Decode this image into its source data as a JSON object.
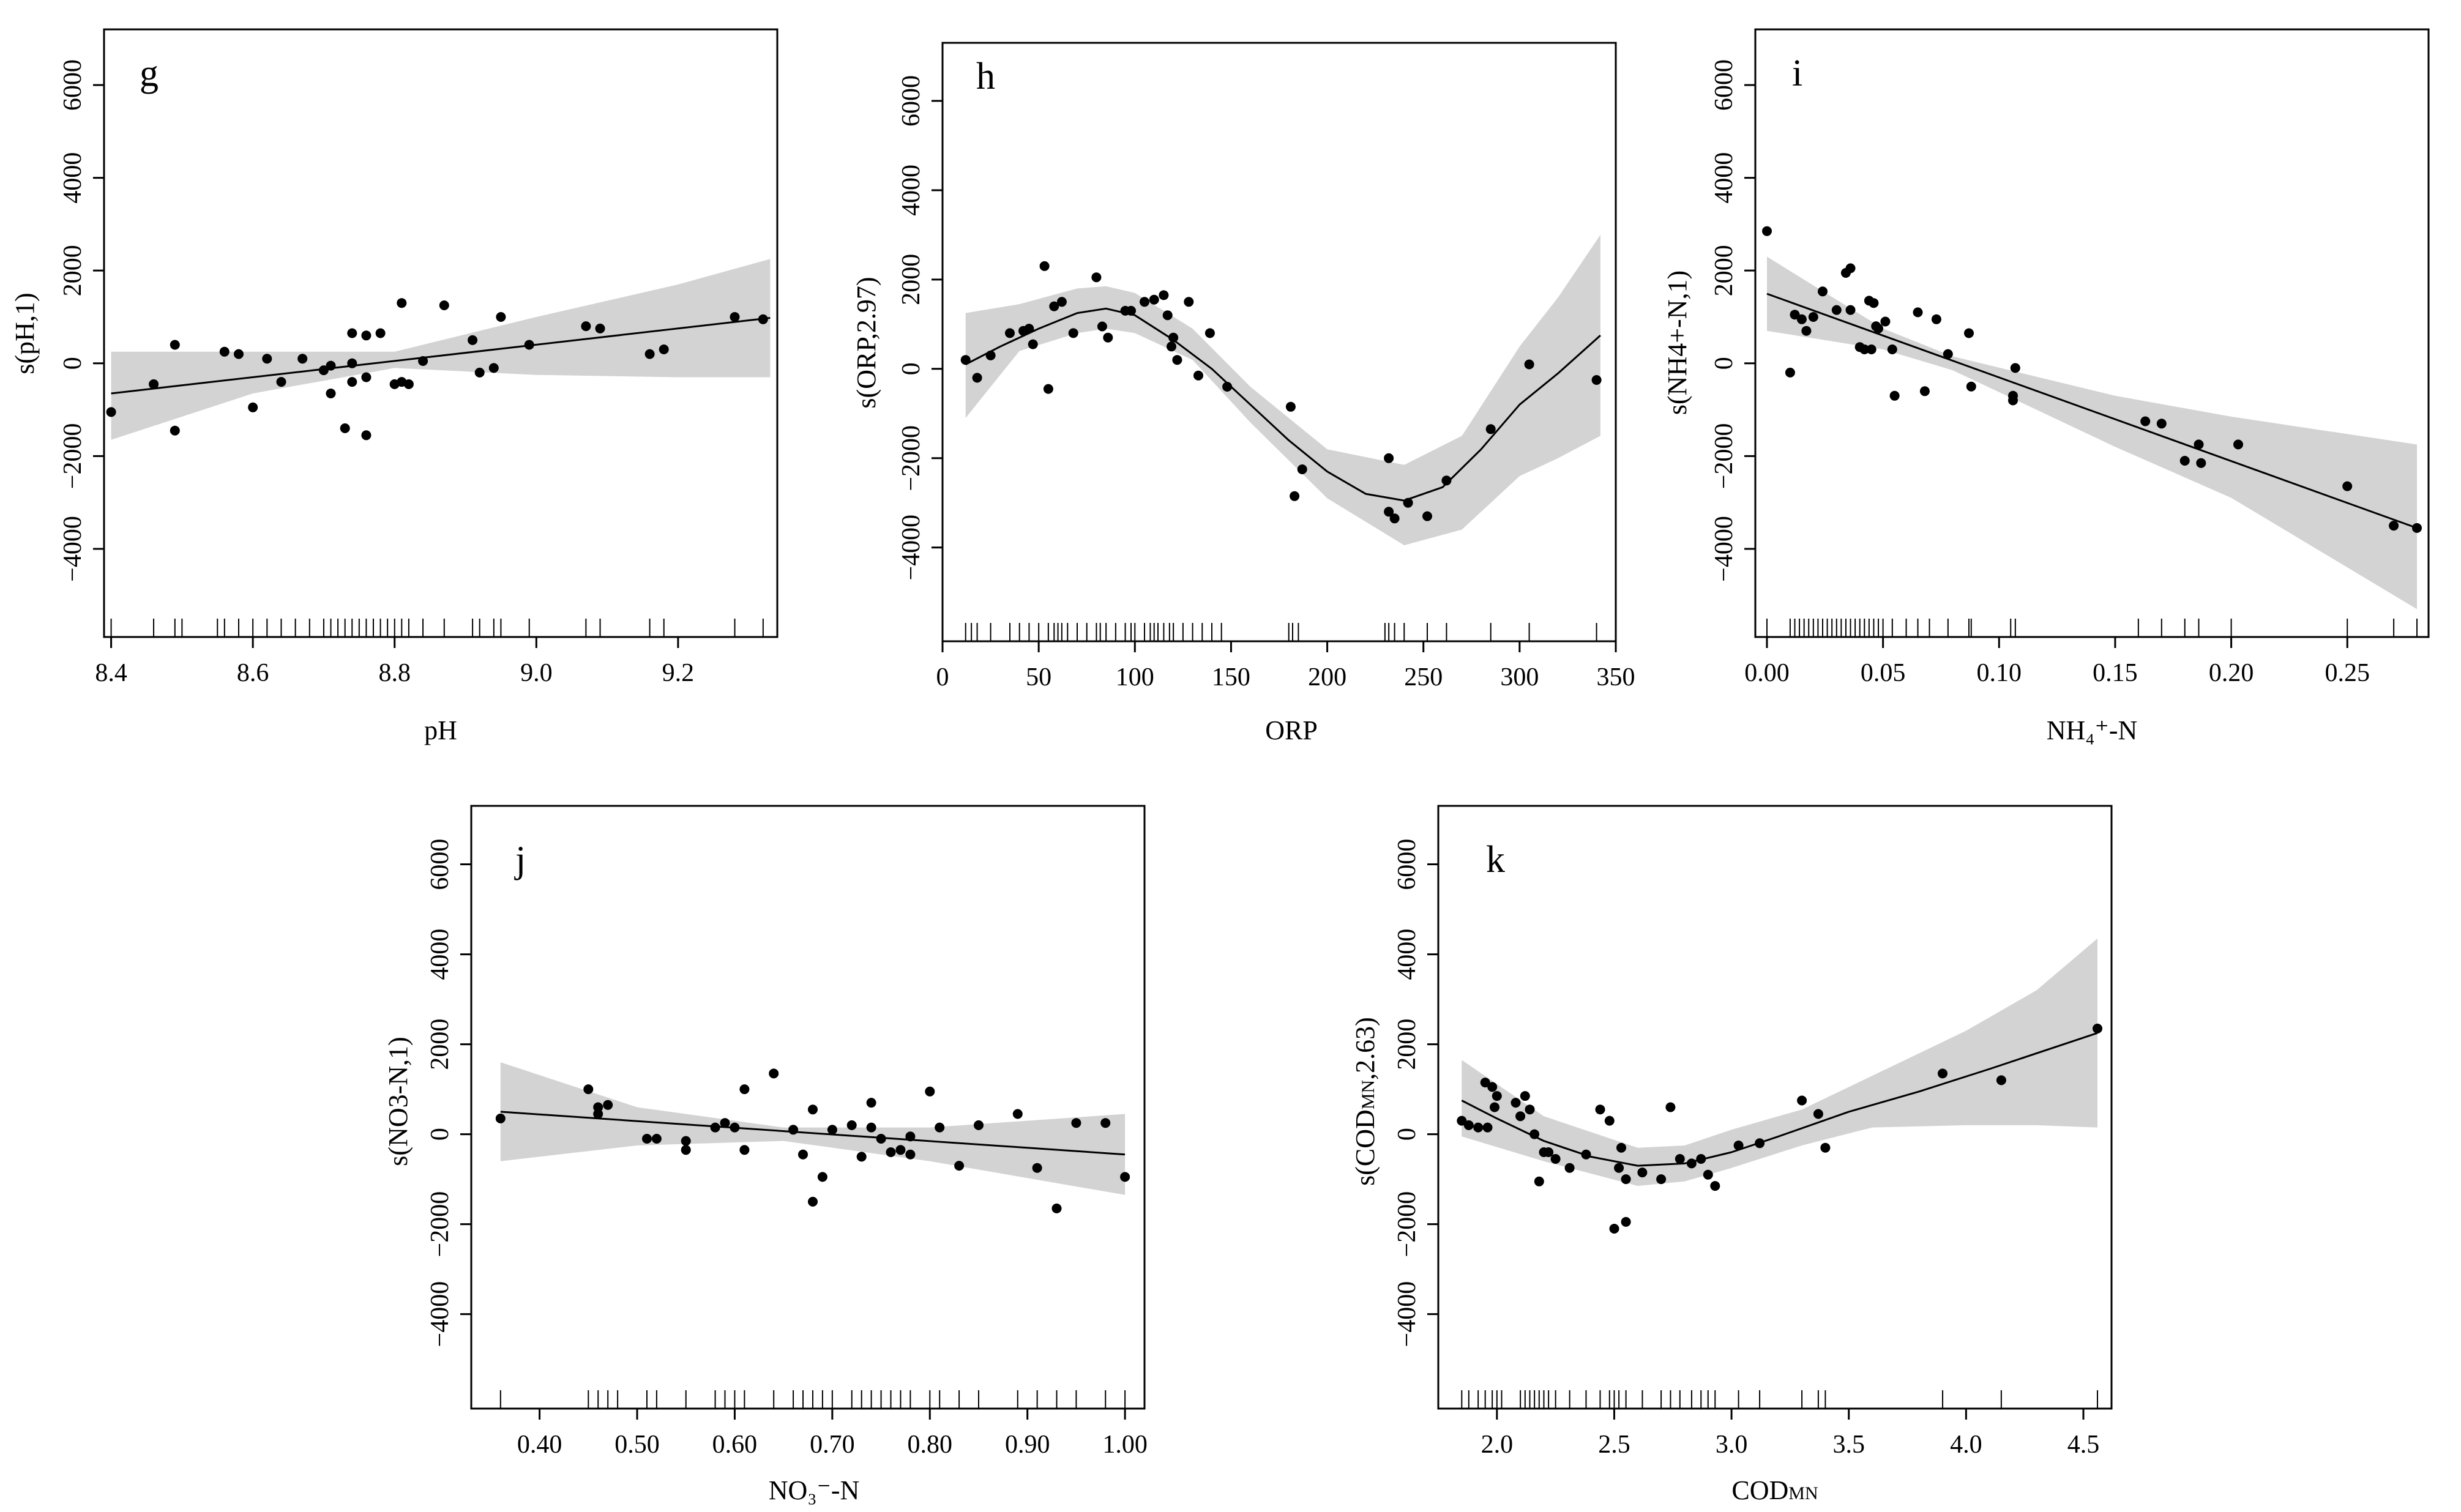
{
  "figure": {
    "description_panels": [
      "g",
      "h",
      "i",
      "j",
      "k"
    ]
  },
  "chart_data": [
    {
      "type": "scatter",
      "letter": "g",
      "xlabel": "pH",
      "ylabel": "s(pH,1)",
      "xlim": [
        8.39,
        9.34
      ],
      "ylim": [
        -5900,
        7200
      ],
      "xticks": [
        8.4,
        8.6,
        8.8,
        9.0,
        9.2
      ],
      "yticks": [
        -4000,
        -2000,
        0,
        2000,
        4000,
        6000
      ],
      "fit": {
        "x": [
          8.4,
          9.33
        ],
        "y": [
          -650,
          980
        ]
      },
      "band": {
        "x": [
          8.4,
          8.6,
          8.8,
          9.0,
          9.2,
          9.33
        ],
        "lo": [
          -1650,
          -650,
          -100,
          -250,
          -300,
          -300
        ],
        "hi": [
          250,
          250,
          250,
          1000,
          1700,
          2250
        ]
      },
      "points": [
        [
          8.4,
          -1050
        ],
        [
          8.46,
          -450
        ],
        [
          8.49,
          -1450
        ],
        [
          8.49,
          400
        ],
        [
          8.56,
          250
        ],
        [
          8.58,
          200
        ],
        [
          8.6,
          -950
        ],
        [
          8.62,
          100
        ],
        [
          8.64,
          -400
        ],
        [
          8.67,
          100
        ],
        [
          8.7,
          -150
        ],
        [
          8.71,
          -50
        ],
        [
          8.71,
          -650
        ],
        [
          8.73,
          -1400
        ],
        [
          8.74,
          0
        ],
        [
          8.74,
          -400
        ],
        [
          8.74,
          650
        ],
        [
          8.76,
          -300
        ],
        [
          8.76,
          -1550
        ],
        [
          8.76,
          600
        ],
        [
          8.78,
          650
        ],
        [
          8.8,
          -450
        ],
        [
          8.81,
          -400
        ],
        [
          8.81,
          1300
        ],
        [
          8.82,
          -450
        ],
        [
          8.84,
          50
        ],
        [
          8.87,
          1250
        ],
        [
          8.91,
          500
        ],
        [
          8.92,
          -200
        ],
        [
          8.94,
          -100
        ],
        [
          8.95,
          1000
        ],
        [
          8.99,
          400
        ],
        [
          9.07,
          800
        ],
        [
          9.09,
          750
        ],
        [
          9.16,
          200
        ],
        [
          9.18,
          300
        ],
        [
          9.28,
          1000
        ],
        [
          9.32,
          950
        ]
      ],
      "rug": [
        8.4,
        8.46,
        8.49,
        8.5,
        8.55,
        8.56,
        8.58,
        8.6,
        8.62,
        8.64,
        8.66,
        8.68,
        8.7,
        8.71,
        8.72,
        8.73,
        8.74,
        8.75,
        8.76,
        8.77,
        8.78,
        8.79,
        8.8,
        8.81,
        8.82,
        8.84,
        8.87,
        8.91,
        8.92,
        8.94,
        8.95,
        8.99,
        9.07,
        9.09,
        9.16,
        9.18,
        9.28,
        9.32
      ]
    },
    {
      "type": "scatter",
      "letter": "h",
      "xlabel": "ORP",
      "ylabel": "s(ORP,2.97)",
      "xlim": [
        0,
        350
      ],
      "ylim": [
        -6100,
        7300
      ],
      "xticks": [
        0,
        50,
        100,
        150,
        200,
        250,
        300,
        350
      ],
      "yticks": [
        -4000,
        -2000,
        0,
        2000,
        4000,
        6000
      ],
      "fit": {
        "x": [
          12,
          30,
          50,
          70,
          85,
          100,
          120,
          140,
          160,
          180,
          200,
          220,
          240,
          260,
          280,
          300,
          320,
          342
        ],
        "y": [
          100,
          500,
          900,
          1250,
          1350,
          1200,
          650,
          0,
          -800,
          -1600,
          -2300,
          -2800,
          -2950,
          -2650,
          -1800,
          -800,
          -100,
          750
        ]
      },
      "band": {
        "x": [
          12,
          40,
          70,
          85,
          100,
          130,
          160,
          200,
          240,
          270,
          300,
          320,
          342
        ],
        "lo": [
          -1100,
          400,
          800,
          900,
          800,
          200,
          -1200,
          -2900,
          -3950,
          -3600,
          -2400,
          -2000,
          -1500
        ],
        "hi": [
          1250,
          1450,
          1800,
          1850,
          1700,
          900,
          -400,
          -1800,
          -2150,
          -1500,
          500,
          1600,
          3000
        ]
      },
      "points": [
        [
          12,
          200
        ],
        [
          18,
          -200
        ],
        [
          25,
          300
        ],
        [
          35,
          800
        ],
        [
          42,
          850
        ],
        [
          45,
          900
        ],
        [
          47,
          550
        ],
        [
          53,
          2300
        ],
        [
          55,
          -450
        ],
        [
          58,
          1400
        ],
        [
          62,
          1500
        ],
        [
          68,
          800
        ],
        [
          80,
          2050
        ],
        [
          83,
          950
        ],
        [
          86,
          700
        ],
        [
          95,
          1300
        ],
        [
          98,
          1300
        ],
        [
          105,
          1500
        ],
        [
          110,
          1550
        ],
        [
          115,
          1650
        ],
        [
          117,
          1200
        ],
        [
          119,
          500
        ],
        [
          120,
          700
        ],
        [
          122,
          200
        ],
        [
          128,
          1500
        ],
        [
          133,
          -150
        ],
        [
          139,
          800
        ],
        [
          148,
          -400
        ],
        [
          181,
          -850
        ],
        [
          183,
          -2850
        ],
        [
          187,
          -2250
        ],
        [
          232,
          -2000
        ],
        [
          232,
          -3200
        ],
        [
          235,
          -3350
        ],
        [
          242,
          -3000
        ],
        [
          252,
          -3300
        ],
        [
          262,
          -2500
        ],
        [
          285,
          -1350
        ],
        [
          305,
          100
        ],
        [
          340,
          -250
        ]
      ],
      "rug": [
        12,
        15,
        18,
        25,
        35,
        40,
        45,
        50,
        55,
        58,
        60,
        62,
        65,
        70,
        75,
        80,
        82,
        85,
        90,
        95,
        98,
        100,
        105,
        108,
        110,
        112,
        115,
        118,
        120,
        125,
        130,
        135,
        140,
        145,
        180,
        182,
        185,
        230,
        232,
        235,
        240,
        252,
        262,
        285,
        305,
        340
      ]
    },
    {
      "type": "scatter",
      "letter": "i",
      "xlabel": "NH₄⁺-N",
      "ylabel": "s(NH4+-N,1)",
      "xlim": [
        -0.005,
        0.285
      ],
      "ylim": [
        -5900,
        7200
      ],
      "xticks": [
        0.0,
        0.05,
        0.1,
        0.15,
        0.2,
        0.25
      ],
      "yticks": [
        -4000,
        -2000,
        0,
        2000,
        4000,
        6000
      ],
      "fit": {
        "x": [
          0.0,
          0.28
        ],
        "y": [
          1500,
          -3550
        ]
      },
      "band": {
        "x": [
          0.0,
          0.05,
          0.08,
          0.15,
          0.2,
          0.28
        ],
        "lo": [
          700,
          300,
          -150,
          -1800,
          -2900,
          -5300
        ],
        "hi": [
          2300,
          750,
          150,
          -700,
          -1150,
          -1750
        ]
      },
      "points": [
        [
          0.0,
          2850
        ],
        [
          0.01,
          -200
        ],
        [
          0.012,
          1050
        ],
        [
          0.015,
          950
        ],
        [
          0.017,
          700
        ],
        [
          0.02,
          1000
        ],
        [
          0.024,
          1550
        ],
        [
          0.03,
          1150
        ],
        [
          0.034,
          1950
        ],
        [
          0.036,
          2050
        ],
        [
          0.036,
          1150
        ],
        [
          0.04,
          350
        ],
        [
          0.042,
          300
        ],
        [
          0.044,
          1350
        ],
        [
          0.045,
          300
        ],
        [
          0.046,
          1300
        ],
        [
          0.047,
          800
        ],
        [
          0.048,
          750
        ],
        [
          0.051,
          900
        ],
        [
          0.054,
          300
        ],
        [
          0.055,
          -700
        ],
        [
          0.065,
          1100
        ],
        [
          0.068,
          -600
        ],
        [
          0.073,
          950
        ],
        [
          0.078,
          200
        ],
        [
          0.087,
          650
        ],
        [
          0.088,
          -500
        ],
        [
          0.106,
          -700
        ],
        [
          0.106,
          -800
        ],
        [
          0.107,
          -100
        ],
        [
          0.163,
          -1250
        ],
        [
          0.17,
          -1300
        ],
        [
          0.18,
          -2100
        ],
        [
          0.186,
          -1750
        ],
        [
          0.187,
          -2150
        ],
        [
          0.203,
          -1750
        ],
        [
          0.25,
          -2650
        ],
        [
          0.27,
          -3500
        ],
        [
          0.28,
          -3550
        ]
      ],
      "rug": [
        0.0,
        0.01,
        0.012,
        0.014,
        0.016,
        0.018,
        0.02,
        0.022,
        0.024,
        0.026,
        0.028,
        0.03,
        0.032,
        0.034,
        0.036,
        0.038,
        0.04,
        0.042,
        0.044,
        0.046,
        0.048,
        0.05,
        0.054,
        0.06,
        0.065,
        0.07,
        0.078,
        0.087,
        0.088,
        0.105,
        0.107,
        0.16,
        0.17,
        0.18,
        0.186,
        0.2,
        0.25,
        0.27,
        0.28
      ]
    },
    {
      "type": "scatter",
      "letter": "j",
      "xlabel": "NO₃⁻-N",
      "ylabel": "s(NO3-N,1)",
      "xlim": [
        0.33,
        1.02
      ],
      "ylim": [
        -6100,
        7300
      ],
      "xticks": [
        0.4,
        0.5,
        0.6,
        0.7,
        0.8,
        0.9,
        1.0
      ],
      "yticks": [
        -4000,
        -2000,
        0,
        2000,
        4000,
        6000
      ],
      "fit": {
        "x": [
          0.36,
          1.0
        ],
        "y": [
          500,
          -450
        ]
      },
      "band": {
        "x": [
          0.36,
          0.5,
          0.65,
          0.8,
          1.0
        ],
        "lo": [
          -600,
          -250,
          -150,
          -600,
          -1350
        ],
        "hi": [
          1600,
          600,
          150,
          150,
          450
        ]
      },
      "points": [
        [
          0.36,
          350
        ],
        [
          0.45,
          1000
        ],
        [
          0.46,
          600
        ],
        [
          0.46,
          450
        ],
        [
          0.47,
          650
        ],
        [
          0.51,
          -100
        ],
        [
          0.52,
          -100
        ],
        [
          0.55,
          -350
        ],
        [
          0.55,
          -150
        ],
        [
          0.58,
          150
        ],
        [
          0.59,
          250
        ],
        [
          0.6,
          150
        ],
        [
          0.61,
          -350
        ],
        [
          0.61,
          1000
        ],
        [
          0.64,
          1350
        ],
        [
          0.66,
          100
        ],
        [
          0.67,
          -450
        ],
        [
          0.68,
          -1500
        ],
        [
          0.68,
          550
        ],
        [
          0.69,
          -950
        ],
        [
          0.7,
          100
        ],
        [
          0.72,
          200
        ],
        [
          0.73,
          -500
        ],
        [
          0.74,
          700
        ],
        [
          0.74,
          150
        ],
        [
          0.75,
          -100
        ],
        [
          0.76,
          -400
        ],
        [
          0.77,
          -350
        ],
        [
          0.78,
          -450
        ],
        [
          0.78,
          -50
        ],
        [
          0.8,
          950
        ],
        [
          0.81,
          150
        ],
        [
          0.83,
          -700
        ],
        [
          0.85,
          200
        ],
        [
          0.89,
          450
        ],
        [
          0.91,
          -750
        ],
        [
          0.93,
          -1650
        ],
        [
          0.95,
          250
        ],
        [
          0.98,
          250
        ],
        [
          1.0,
          -950
        ]
      ],
      "rug": [
        0.36,
        0.45,
        0.46,
        0.47,
        0.48,
        0.51,
        0.52,
        0.55,
        0.58,
        0.59,
        0.6,
        0.61,
        0.64,
        0.66,
        0.67,
        0.68,
        0.69,
        0.7,
        0.72,
        0.73,
        0.74,
        0.75,
        0.76,
        0.77,
        0.78,
        0.8,
        0.81,
        0.83,
        0.85,
        0.89,
        0.91,
        0.93,
        0.95,
        0.98,
        1.0
      ]
    },
    {
      "type": "scatter",
      "letter": "k",
      "xlabel": "COD_MN",
      "xlabel_main": "COD",
      "xlabel_sub": "MN",
      "ylabel": "s(COD_MN,2.63)",
      "ylabel_pre": "s(COD",
      "ylabel_sub": "MN",
      "ylabel_post": ",2.63)",
      "xlim": [
        1.75,
        4.62
      ],
      "ylim": [
        -6100,
        7300
      ],
      "xticks": [
        2.0,
        2.5,
        3.0,
        3.5,
        4.0,
        4.5
      ],
      "yticks": [
        -4000,
        -2000,
        0,
        2000,
        4000,
        6000
      ],
      "fit": {
        "x": [
          1.85,
          2.0,
          2.2,
          2.4,
          2.6,
          2.8,
          3.0,
          3.2,
          3.5,
          3.8,
          4.1,
          4.56
        ],
        "y": [
          750,
          350,
          -150,
          -500,
          -700,
          -650,
          -400,
          -50,
          500,
          950,
          1450,
          2250
        ]
      },
      "band": {
        "x": [
          1.85,
          2.2,
          2.6,
          2.8,
          3.0,
          3.3,
          3.6,
          4.0,
          4.3,
          4.56
        ],
        "lo": [
          -50,
          -600,
          -1150,
          -1050,
          -750,
          -250,
          150,
          200,
          200,
          150
        ],
        "hi": [
          1650,
          400,
          -300,
          -250,
          100,
          550,
          1300,
          2300,
          3200,
          4350
        ]
      },
      "points": [
        [
          1.85,
          300
        ],
        [
          1.88,
          200
        ],
        [
          1.92,
          150
        ],
        [
          1.95,
          1150
        ],
        [
          1.96,
          150
        ],
        [
          1.98,
          1050
        ],
        [
          1.99,
          600
        ],
        [
          2.0,
          850
        ],
        [
          2.08,
          700
        ],
        [
          2.1,
          400
        ],
        [
          2.12,
          850
        ],
        [
          2.14,
          550
        ],
        [
          2.16,
          0
        ],
        [
          2.18,
          -1050
        ],
        [
          2.2,
          -400
        ],
        [
          2.22,
          -400
        ],
        [
          2.25,
          -550
        ],
        [
          2.31,
          -750
        ],
        [
          2.38,
          -450
        ],
        [
          2.44,
          550
        ],
        [
          2.48,
          300
        ],
        [
          2.5,
          -2100
        ],
        [
          2.52,
          -750
        ],
        [
          2.53,
          -300
        ],
        [
          2.55,
          -1950
        ],
        [
          2.55,
          -1000
        ],
        [
          2.62,
          -850
        ],
        [
          2.7,
          -1000
        ],
        [
          2.74,
          600
        ],
        [
          2.78,
          -550
        ],
        [
          2.83,
          -650
        ],
        [
          2.87,
          -550
        ],
        [
          2.9,
          -900
        ],
        [
          2.93,
          -1150
        ],
        [
          3.03,
          -250
        ],
        [
          3.12,
          -200
        ],
        [
          3.3,
          750
        ],
        [
          3.37,
          450
        ],
        [
          3.4,
          -300
        ],
        [
          3.9,
          1350
        ],
        [
          4.15,
          1200
        ],
        [
          4.56,
          2350
        ]
      ],
      "rug": [
        1.85,
        1.88,
        1.92,
        1.95,
        1.98,
        2.0,
        2.02,
        2.1,
        2.12,
        2.14,
        2.16,
        2.18,
        2.2,
        2.22,
        2.25,
        2.31,
        2.38,
        2.44,
        2.48,
        2.5,
        2.52,
        2.55,
        2.62,
        2.7,
        2.74,
        2.78,
        2.83,
        2.87,
        2.9,
        2.93,
        3.03,
        3.12,
        3.3,
        3.37,
        3.4,
        3.9,
        4.15,
        4.56
      ]
    }
  ]
}
